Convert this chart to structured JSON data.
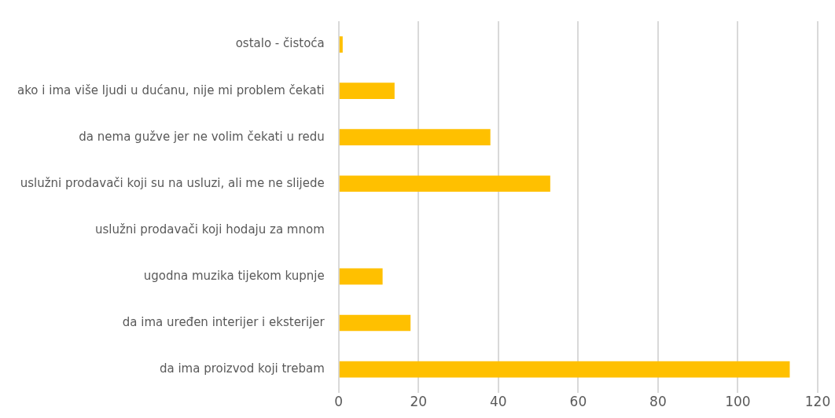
{
  "chart_data": {
    "type": "bar",
    "orientation": "horizontal",
    "categories": [
      "ostalo - čistoća",
      "ako i ima više ljudi u dućanu, nije mi problem čekati",
      "da nema gužve jer ne volim čekati u redu",
      "uslužni prodavači koji su na usluzi, ali me ne slijede",
      "uslužni prodavači koji hodaju za mnom",
      "ugodna muzika tijekom kupnje",
      "da ima uređen interijer i eksterijer",
      "da ima proizvod koji trebam"
    ],
    "values": [
      1,
      14,
      38,
      53,
      0,
      11,
      18,
      113
    ],
    "color": "#ffc000",
    "xlim": [
      0,
      120
    ],
    "xticks": [
      0,
      20,
      40,
      60,
      80,
      100,
      120
    ],
    "grid": "x"
  }
}
